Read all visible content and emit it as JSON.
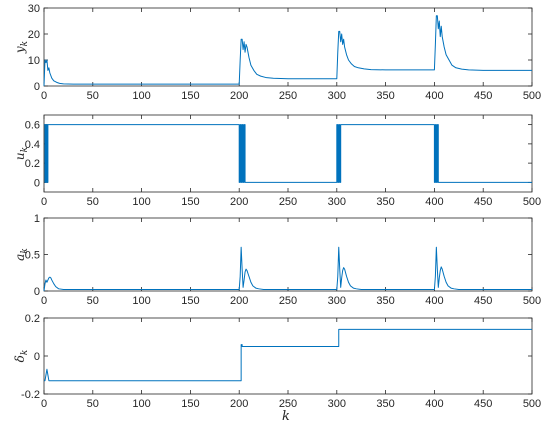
{
  "chart_data": [
    {
      "type": "line",
      "ylabel": "y",
      "ylabel_sub": "k",
      "xlim": [
        0,
        500
      ],
      "ylim": [
        0,
        30
      ],
      "xticks": [
        0,
        50,
        100,
        150,
        200,
        250,
        300,
        350,
        400,
        450,
        500
      ],
      "yticks": [
        0,
        10,
        20,
        30
      ],
      "grid": false,
      "color": "#0072BD",
      "series": [
        {
          "x": [
            0,
            1,
            2,
            3,
            4,
            5,
            6,
            8,
            10,
            13,
            16,
            20,
            30,
            60,
            100,
            150,
            200,
            201,
            202,
            203,
            204,
            205,
            206,
            207,
            208,
            210,
            212,
            215,
            218,
            222,
            228,
            235,
            250,
            280,
            300,
            301,
            302,
            303,
            304,
            305,
            306,
            307,
            308,
            310,
            312,
            315,
            318,
            322,
            328,
            335,
            350,
            380,
            400,
            401,
            402,
            403,
            404,
            405,
            406,
            407,
            408,
            410,
            412,
            415,
            418,
            422,
            428,
            435,
            450,
            480,
            500
          ],
          "y": [
            0,
            10,
            9,
            10,
            6,
            7,
            5,
            3,
            2,
            1.4,
            1,
            0.8,
            0.7,
            0.7,
            0.7,
            0.7,
            0.7,
            10,
            18,
            18,
            14,
            17,
            13,
            16,
            15,
            11,
            8,
            6,
            4.5,
            3.8,
            3.2,
            3,
            2.8,
            2.8,
            2.8,
            13,
            21,
            21,
            17,
            20,
            16,
            18,
            15,
            12,
            10,
            8.5,
            7.5,
            7,
            6.6,
            6.3,
            6.2,
            6.2,
            6.2,
            16,
            27,
            27,
            22,
            25,
            19,
            23,
            19,
            15,
            12,
            10,
            8,
            7,
            6.5,
            6.2,
            6,
            6,
            6
          ]
        }
      ]
    },
    {
      "type": "line",
      "ylabel": "u",
      "ylabel_sub": "k",
      "xlim": [
        0,
        500
      ],
      "ylim": [
        -0.1,
        0.7
      ],
      "xticks": [
        0,
        50,
        100,
        150,
        200,
        250,
        300,
        350,
        400,
        450,
        500
      ],
      "yticks": [
        0,
        0.2,
        0.4,
        0.6
      ],
      "grid": false,
      "color": "#0072BD",
      "series": [
        {
          "x": [
            0,
            1,
            1,
            2,
            2,
            3,
            3,
            4,
            4,
            5,
            5,
            200,
            200,
            201,
            201,
            202,
            202,
            203,
            203,
            204,
            204,
            205,
            205,
            206,
            206,
            300,
            300,
            301,
            301,
            302,
            302,
            303,
            303,
            304,
            304,
            305,
            305,
            400,
            400,
            401,
            401,
            402,
            402,
            403,
            403,
            404,
            404,
            405,
            405,
            500
          ],
          "y": [
            0.6,
            0.6,
            0,
            0,
            0.6,
            0.6,
            0,
            0,
            0.6,
            0.6,
            0.6,
            0.6,
            0,
            0,
            0.6,
            0.6,
            0,
            0,
            0.6,
            0.6,
            0,
            0,
            0.6,
            0.6,
            0,
            0,
            0.6,
            0.6,
            0,
            0,
            0.6,
            0.6,
            0,
            0,
            0.6,
            0.6,
            0.6,
            0.6,
            0,
            0,
            0.6,
            0.6,
            0,
            0,
            0.6,
            0.6,
            0,
            0,
            0,
            0
          ]
        }
      ]
    },
    {
      "type": "line",
      "ylabel": "a",
      "ylabel_sub": "k",
      "xlim": [
        0,
        500
      ],
      "ylim": [
        0,
        1
      ],
      "xticks": [
        0,
        50,
        100,
        150,
        200,
        250,
        300,
        350,
        400,
        450,
        500
      ],
      "yticks": [
        0,
        0.5,
        1
      ],
      "grid": false,
      "color": "#0072BD",
      "series": [
        {
          "x": [
            0,
            1,
            2,
            3,
            4,
            5,
            6,
            7,
            8,
            10,
            12,
            15,
            20,
            30,
            200,
            201,
            202,
            203,
            204,
            205,
            206,
            207,
            208,
            209,
            210,
            212,
            214,
            217,
            220,
            225,
            235,
            300,
            301,
            302,
            303,
            304,
            305,
            306,
            307,
            308,
            309,
            310,
            312,
            314,
            317,
            320,
            325,
            335,
            400,
            401,
            402,
            403,
            404,
            405,
            406,
            407,
            408,
            409,
            410,
            412,
            414,
            417,
            420,
            425,
            435,
            500
          ],
          "y": [
            0,
            0.1,
            0.15,
            0.12,
            0.15,
            0.18,
            0.19,
            0.18,
            0.15,
            0.1,
            0.06,
            0.03,
            0.02,
            0.02,
            0.02,
            0.2,
            0.6,
            0.3,
            0.05,
            0.15,
            0.26,
            0.3,
            0.28,
            0.24,
            0.2,
            0.12,
            0.07,
            0.04,
            0.03,
            0.02,
            0.02,
            0.02,
            0.2,
            0.6,
            0.3,
            0.05,
            0.18,
            0.28,
            0.32,
            0.3,
            0.25,
            0.2,
            0.12,
            0.07,
            0.04,
            0.03,
            0.02,
            0.02,
            0.02,
            0.2,
            0.6,
            0.3,
            0.05,
            0.18,
            0.28,
            0.33,
            0.3,
            0.25,
            0.2,
            0.12,
            0.07,
            0.04,
            0.03,
            0.02,
            0.02,
            0.02
          ]
        }
      ]
    },
    {
      "type": "line",
      "ylabel": "δ",
      "ylabel_sub": "k",
      "xlabel": "k",
      "xlim": [
        0,
        500
      ],
      "ylim": [
        -0.2,
        0.2
      ],
      "xticks": [
        0,
        50,
        100,
        150,
        200,
        250,
        300,
        350,
        400,
        450,
        500
      ],
      "yticks": [
        -0.2,
        0,
        0.2
      ],
      "grid": false,
      "color": "#0072BD",
      "series": [
        {
          "x": [
            0,
            1,
            2,
            3,
            4,
            5,
            5,
            202,
            202,
            203,
            203,
            302,
            302,
            500
          ],
          "y": [
            -0.13,
            -0.13,
            -0.1,
            -0.07,
            -0.1,
            -0.13,
            -0.13,
            -0.13,
            0.06,
            0.06,
            0.05,
            0.05,
            0.14,
            0.14
          ]
        }
      ]
    }
  ]
}
